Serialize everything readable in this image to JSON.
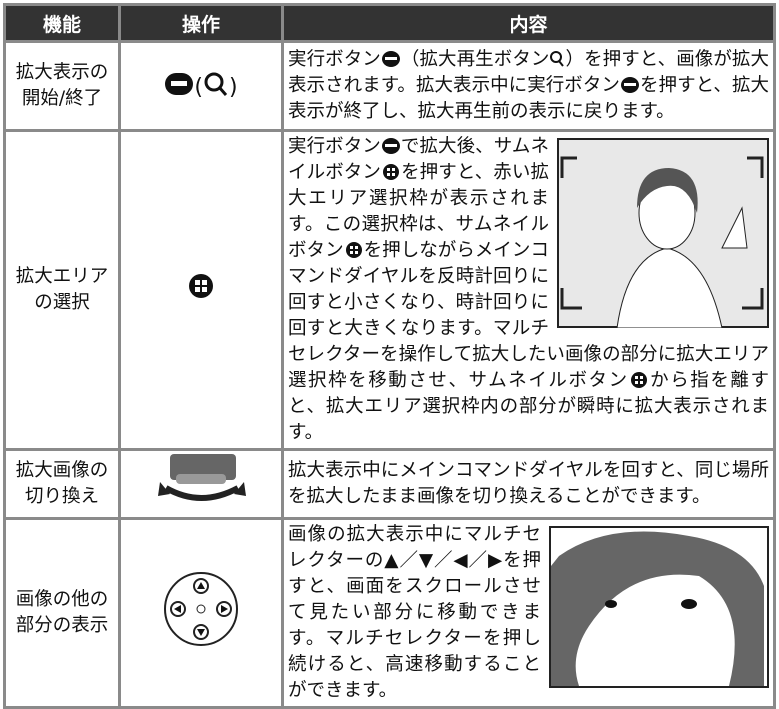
{
  "header": {
    "function": "機能",
    "operation": "操作",
    "content": "内容"
  },
  "rows": [
    {
      "function": [
        "拡大表示の",
        "開始/終了"
      ],
      "operation": [
        "(",
        ")"
      ],
      "content": [
        "実行ボタン",
        "（拡大再生ボタン",
        "）を押すと、画像が拡大表示されます。拡大表示中に実行ボタン",
        "を押すと、拡大表示が終了し、拡大再生前の表示に戻ります。"
      ]
    },
    {
      "function": [
        "拡大エリア",
        "の選択"
      ],
      "content": [
        "実行ボタン",
        "で拡大後、サムネイルボタン",
        "を押すと、赤い拡大エリア選択枠が表示されます。この選択枠は、サムネイルボタン",
        "を押しながらメインコマンドダイヤルを反時計回りに回すと小さくなり、時計回りに回すと大きくなります。マルチセレクターを操作して拡大したい画像の部分に拡大エリア選択枠を移動させ、サムネイルボタン",
        "から指を離すと、拡大エリア選択枠内の部分が瞬時に拡大表示されます。"
      ]
    },
    {
      "function": [
        "拡大画像の",
        "切り換え"
      ],
      "content": [
        "拡大表示中にメインコマンドダイヤルを回すと、同じ場所を拡大したまま画像を切り換えることができます。"
      ]
    },
    {
      "function": [
        "画像の他の",
        "部分の表示"
      ],
      "content": [
        "画像の拡大表示中にマルチセレクターの▲／▼／◀／▶を押すと、画面をスクロールさせて見たい部分に移動できます。マルチセレクターを押し続けると、高速移動することができます。"
      ]
    }
  ]
}
